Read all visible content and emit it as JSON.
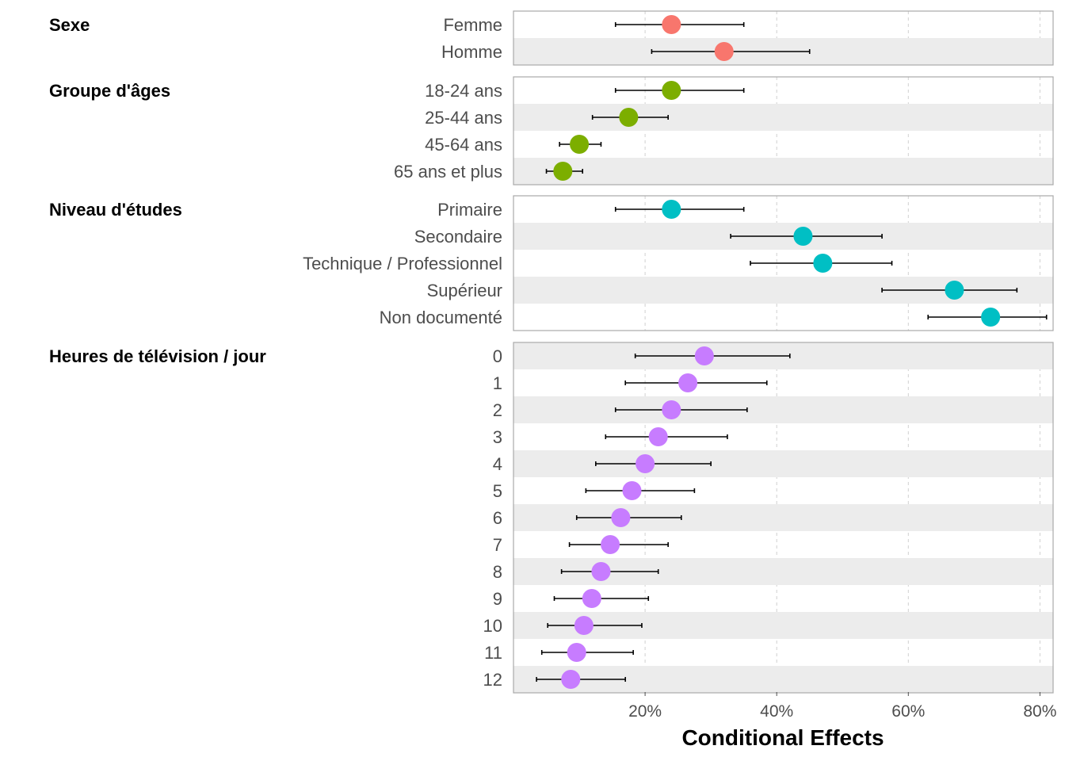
{
  "chart_data": {
    "type": "forest-plot",
    "xlabel": "Conditional Effects",
    "xlim": [
      0,
      0.82
    ],
    "xticks": [
      0.2,
      0.4,
      0.6,
      0.8
    ],
    "xtick_labels": [
      "20%",
      "40%",
      "60%",
      "80%"
    ],
    "grid": "vertical-dashed",
    "groups": [
      {
        "name": "Sexe",
        "color": "#F8766D",
        "rows": [
          {
            "label": "Femme",
            "value": 0.24,
            "lo": 0.155,
            "hi": 0.35
          },
          {
            "label": "Homme",
            "value": 0.32,
            "lo": 0.21,
            "hi": 0.45
          }
        ]
      },
      {
        "name": "Groupe d'âges",
        "color": "#7CAE00",
        "rows": [
          {
            "label": "18-24 ans",
            "value": 0.24,
            "lo": 0.155,
            "hi": 0.35
          },
          {
            "label": "25-44 ans",
            "value": 0.175,
            "lo": 0.12,
            "hi": 0.235
          },
          {
            "label": "45-64 ans",
            "value": 0.1,
            "lo": 0.07,
            "hi": 0.133
          },
          {
            "label": "65 ans et plus",
            "value": 0.075,
            "lo": 0.05,
            "hi": 0.105
          }
        ]
      },
      {
        "name": "Niveau d'études",
        "color": "#00BFC4",
        "rows": [
          {
            "label": "Primaire",
            "value": 0.24,
            "lo": 0.155,
            "hi": 0.35
          },
          {
            "label": "Secondaire",
            "value": 0.44,
            "lo": 0.33,
            "hi": 0.56
          },
          {
            "label": "Technique / Professionnel",
            "value": 0.47,
            "lo": 0.36,
            "hi": 0.575
          },
          {
            "label": "Supérieur",
            "value": 0.67,
            "lo": 0.56,
            "hi": 0.765
          },
          {
            "label": "Non documenté",
            "value": 0.725,
            "lo": 0.63,
            "hi": 0.81
          }
        ]
      },
      {
        "name": "Heures de télévision / jour",
        "color": "#C77CFF",
        "rows": [
          {
            "label": "0",
            "value": 0.29,
            "lo": 0.185,
            "hi": 0.42
          },
          {
            "label": "1",
            "value": 0.265,
            "lo": 0.17,
            "hi": 0.385
          },
          {
            "label": "2",
            "value": 0.24,
            "lo": 0.155,
            "hi": 0.355
          },
          {
            "label": "3",
            "value": 0.22,
            "lo": 0.14,
            "hi": 0.325
          },
          {
            "label": "4",
            "value": 0.2,
            "lo": 0.125,
            "hi": 0.3
          },
          {
            "label": "5",
            "value": 0.18,
            "lo": 0.11,
            "hi": 0.275
          },
          {
            "label": "6",
            "value": 0.163,
            "lo": 0.096,
            "hi": 0.255
          },
          {
            "label": "7",
            "value": 0.147,
            "lo": 0.085,
            "hi": 0.235
          },
          {
            "label": "8",
            "value": 0.133,
            "lo": 0.073,
            "hi": 0.22
          },
          {
            "label": "9",
            "value": 0.119,
            "lo": 0.062,
            "hi": 0.205
          },
          {
            "label": "10",
            "value": 0.107,
            "lo": 0.052,
            "hi": 0.195
          },
          {
            "label": "11",
            "value": 0.096,
            "lo": 0.043,
            "hi": 0.182
          },
          {
            "label": "12",
            "value": 0.087,
            "lo": 0.035,
            "hi": 0.17
          }
        ]
      }
    ]
  }
}
